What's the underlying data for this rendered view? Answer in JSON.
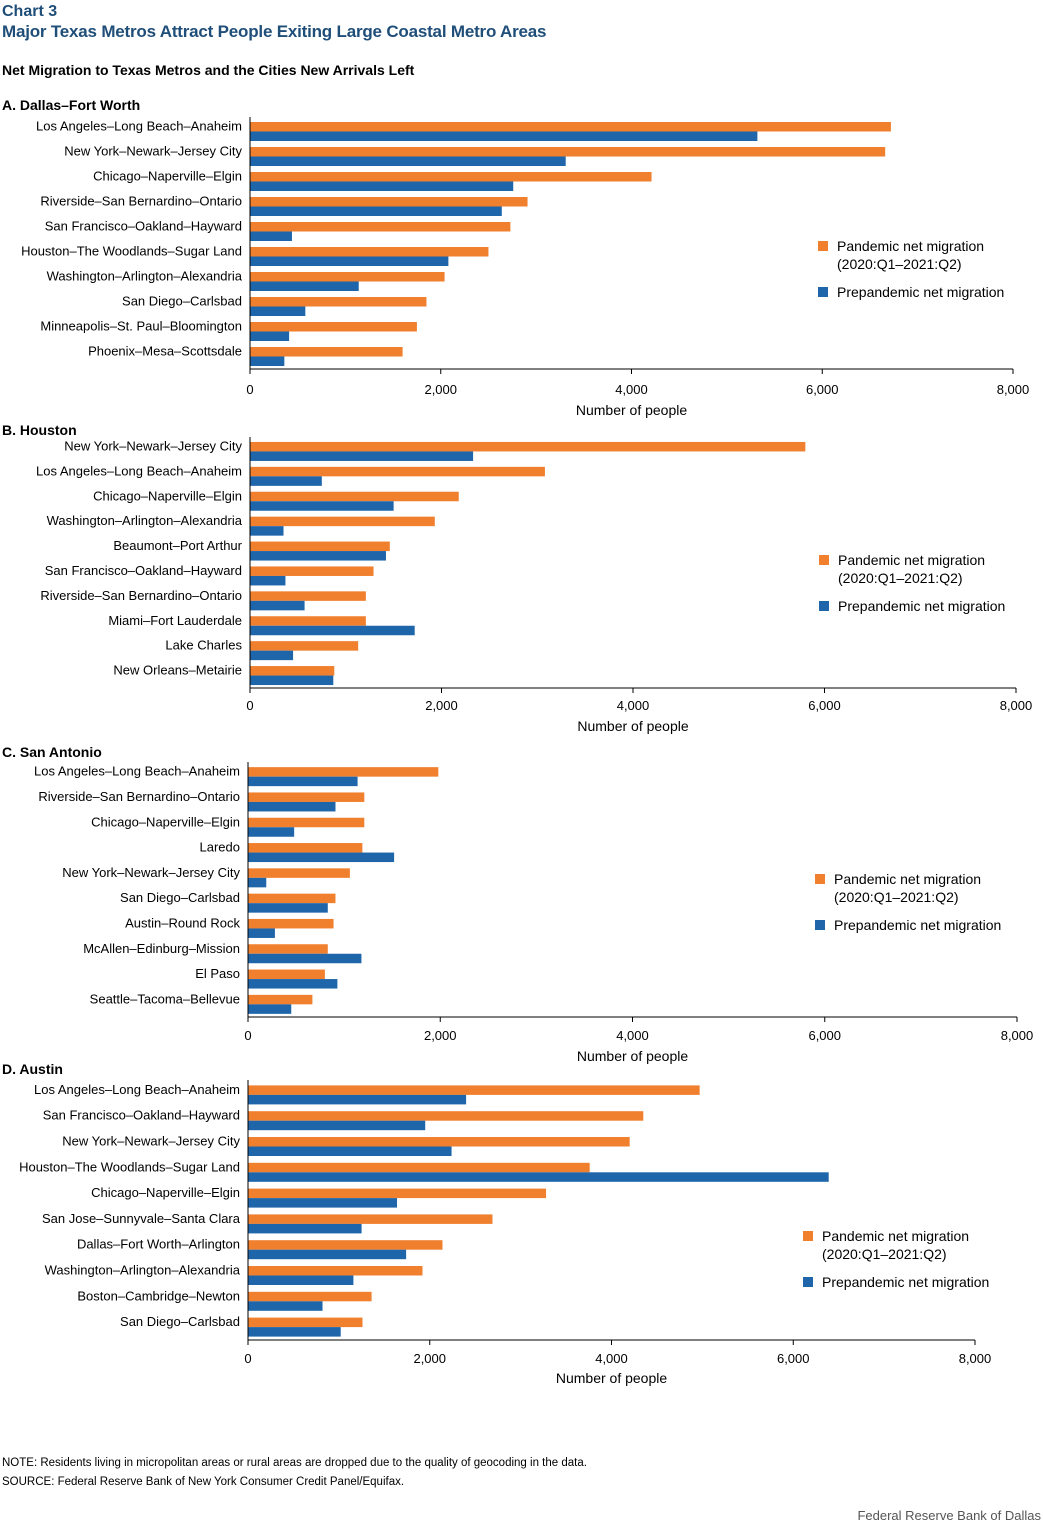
{
  "header": {
    "label": "Chart 3",
    "title": "Major Texas Metros Attract People Exiting Large Coastal Metro Areas",
    "subtitle": "Net Migration to Texas Metros and the Cities New Arrivals Left"
  },
  "footer": {
    "note": "NOTE: Residents living in micropolitan areas or rural areas are dropped due to the quality of geocoding in the data.",
    "source": "SOURCE: Federal Reserve Bank of New York Consumer Credit Panel/Equifax.",
    "credit": "Federal Reserve Bank of Dallas"
  },
  "colors": {
    "pandemic": "#f07f2e",
    "prepandemic": "#1f65aa",
    "axis": "#000000"
  },
  "chart_data": [
    {
      "type": "bar",
      "orientation": "horizontal",
      "title": "A. Dallas–Fort Worth",
      "xlabel": "Number of people",
      "xlim": [
        0,
        8000
      ],
      "ticks": [
        "0",
        "2,000",
        "4,000",
        "6,000",
        "8,000"
      ],
      "legend": [
        "Pandemic net migration",
        "(2020:Q1–2021:Q2)",
        "Prepandemic net migration"
      ],
      "categories": [
        "Los Angeles–Long Beach–Anaheim",
        "New York–Newark–Jersey City",
        "Chicago–Naperville–Elgin",
        "Riverside–San Bernardino–Ontario",
        "San Francisco–Oakland–Hayward",
        "Houston–The Woodlands–Sugar Land",
        "Washington–Arlington–Alexandria",
        "San Diego–Carlsbad",
        "Minneapolis–St. Paul–Bloomington",
        "Phoenix–Mesa–Scottsdale"
      ],
      "series": [
        {
          "name": "Pandemic net migration (2020:Q1–2021:Q2)",
          "values": [
            6720,
            6660,
            4210,
            2910,
            2730,
            2500,
            2040,
            1850,
            1750,
            1600
          ]
        },
        {
          "name": "Prepandemic net migration",
          "values": [
            5320,
            3310,
            2760,
            2640,
            440,
            2080,
            1140,
            580,
            410,
            360
          ]
        }
      ]
    },
    {
      "type": "bar",
      "orientation": "horizontal",
      "title": "B. Houston",
      "xlabel": "Number of people",
      "xlim": [
        0,
        8000
      ],
      "ticks": [
        "0",
        "2,000",
        "4,000",
        "6,000",
        "8,000"
      ],
      "legend": [
        "Pandemic net migration",
        "(2020:Q1–2021:Q2)",
        "Prepandemic net migration"
      ],
      "categories": [
        "New York–Newark–Jersey City",
        "Los Angeles–Long Beach–Anaheim",
        "Chicago–Naperville–Elgin",
        "Washington–Arlington–Alexandria",
        "Beaumont–Port Arthur",
        "San Francisco–Oakland–Hayward",
        "Riverside–San Bernardino–Ontario",
        "Miami–Fort Lauderdale",
        "Lake Charles",
        "New Orleans–Metairie"
      ],
      "series": [
        {
          "name": "Pandemic net migration (2020:Q1–2021:Q2)",
          "values": [
            5800,
            3080,
            2180,
            1930,
            1460,
            1290,
            1210,
            1210,
            1130,
            880
          ]
        },
        {
          "name": "Prepandemic net migration",
          "values": [
            2330,
            750,
            1500,
            350,
            1420,
            370,
            570,
            1720,
            450,
            870
          ]
        }
      ]
    },
    {
      "type": "bar",
      "orientation": "horizontal",
      "title": "C. San Antonio",
      "xlabel": "Number of people",
      "xlim": [
        0,
        8000
      ],
      "ticks": [
        "0",
        "2,000",
        "4,000",
        "6,000",
        "8,000"
      ],
      "legend": [
        "Pandemic net migration",
        "(2020:Q1–2021:Q2)",
        "Prepandemic net migration"
      ],
      "categories": [
        "Los Angeles–Long Beach–Anaheim",
        "Riverside–San Bernardino–Ontario",
        "Chicago–Naperville–Elgin",
        "Laredo",
        "New York–Newark–Jersey City",
        "San Diego–Carlsbad",
        "Austin–Round Rock",
        "McAllen–Edinburg–Mission",
        "El Paso",
        "Seattle–Tacoma–Bellevue"
      ],
      "series": [
        {
          "name": "Pandemic net migration (2020:Q1–2021:Q2)",
          "values": [
            1980,
            1210,
            1210,
            1190,
            1060,
            910,
            890,
            830,
            800,
            670
          ]
        },
        {
          "name": "Prepandemic net migration",
          "values": [
            1140,
            910,
            480,
            1520,
            190,
            830,
            280,
            1180,
            930,
            450
          ]
        }
      ]
    },
    {
      "type": "bar",
      "orientation": "horizontal",
      "title": "D. Austin",
      "xlabel": "Number of people",
      "xlim": [
        0,
        8000
      ],
      "ticks": [
        "0",
        "2,000",
        "4,000",
        "6,000",
        "8,000"
      ],
      "legend": [
        "Pandemic net migration",
        "(2020:Q1–2021:Q2)",
        "Prepandemic net migration"
      ],
      "categories": [
        "Los Angeles–Long Beach–Anaheim",
        "San Francisco–Oakland–Hayward",
        "New York–Newark–Jersey City",
        "Houston–The Woodlands–Sugar Land",
        "Chicago–Naperville–Elgin",
        "San Jose–Sunnyvale–Santa Clara",
        "Dallas–Fort Worth–Arlington",
        "Washington–Arlington–Alexandria",
        "Boston–Cambridge–Newton",
        "San Diego–Carlsbad"
      ],
      "series": [
        {
          "name": "Pandemic net migration (2020:Q1–2021:Q2)",
          "values": [
            4970,
            4350,
            4200,
            3760,
            3280,
            2690,
            2140,
            1920,
            1360,
            1260
          ]
        },
        {
          "name": "Prepandemic net migration",
          "values": [
            2400,
            1950,
            2240,
            6390,
            1640,
            1250,
            1740,
            1160,
            820,
            1020
          ]
        }
      ]
    }
  ]
}
